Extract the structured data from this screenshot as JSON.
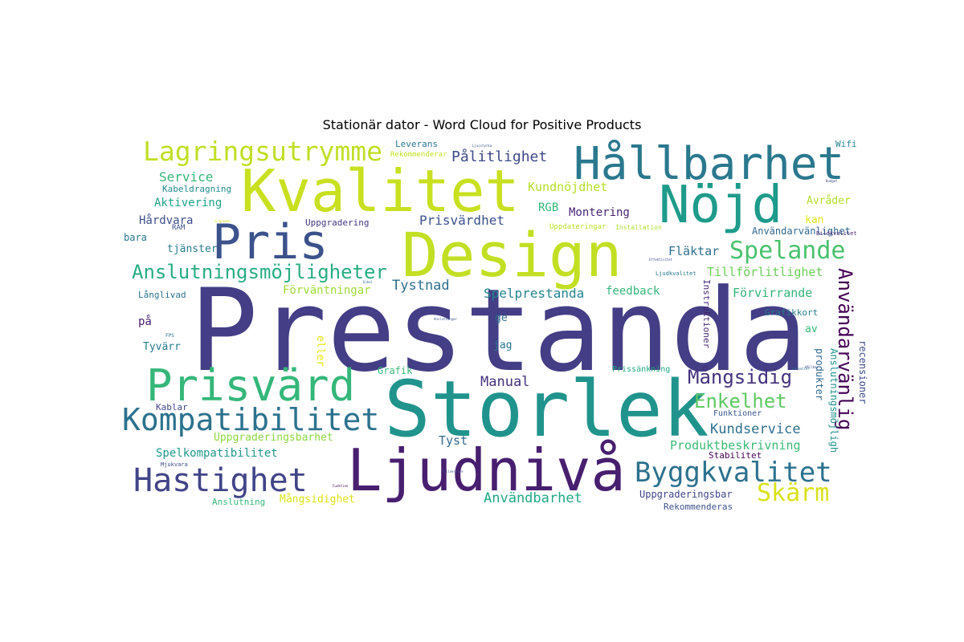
{
  "title": "Stationär dator - Word Cloud for Positive Products",
  "words": [
    {
      "text": "Prestanda",
      "color": "#433e85"
    },
    {
      "text": "Storlek",
      "color": "#20938c"
    },
    {
      "text": "Design",
      "color": "#c2df23"
    },
    {
      "text": "Kvalitet",
      "color": "#c8e020"
    },
    {
      "text": "Nöjd",
      "color": "#1e9b8a"
    },
    {
      "text": "Ljudnivå",
      "color": "#481f70"
    },
    {
      "text": "Hållbarhet",
      "color": "#2a788e"
    },
    {
      "text": "Prisvärd",
      "color": "#35b779"
    },
    {
      "text": "Pris",
      "color": "#3b528b"
    },
    {
      "text": "Kompatibilitet",
      "color": "#2c728e"
    },
    {
      "text": "Lagringsutrymme",
      "color": "#c0df25"
    },
    {
      "text": "Hastighet",
      "color": "#414487"
    },
    {
      "text": "Byggkvalitet",
      "color": "#2c718e"
    },
    {
      "text": "Spelande",
      "color": "#4ac16d"
    },
    {
      "text": "Anslutningsmöjligheter",
      "color": "#27ad81"
    },
    {
      "text": "Skärm",
      "color": "#d8e219"
    },
    {
      "text": "Användarvänlig",
      "color": "#440154"
    },
    {
      "text": "Mångsidig",
      "color": "#46337e"
    },
    {
      "text": "Enkelhet",
      "color": "#5ec962"
    },
    {
      "text": "Pålitlighet",
      "color": "#3e4a89"
    },
    {
      "text": "Kundnöjdhet",
      "color": "#b5de2b"
    },
    {
      "text": "Tystnad",
      "color": "#2e6e8e"
    },
    {
      "text": "Spelprestanda",
      "color": "#25848e"
    },
    {
      "text": "Prisvärdhet",
      "color": "#3b518b"
    },
    {
      "text": "Manual",
      "color": "#46327e"
    },
    {
      "text": "Kundservice",
      "color": "#2d708e"
    },
    {
      "text": "Användbarhet",
      "color": "#22a884"
    },
    {
      "text": "Hårdvara",
      "color": "#3d4e8a"
    },
    {
      "text": "Service",
      "color": "#34b679"
    },
    {
      "text": "Aktivering",
      "color": "#20a386"
    },
    {
      "text": "Förväntningar",
      "color": "#9fda3a"
    },
    {
      "text": "Spelkompatibilitet",
      "color": "#1f988b"
    },
    {
      "text": "Uppgraderingsbarhet",
      "color": "#8ed645"
    },
    {
      "text": "Produktbeskrivning",
      "color": "#3aba76"
    },
    {
      "text": "Tillförlitlighet",
      "color": "#6ccd5a"
    },
    {
      "text": "Förvirrande",
      "color": "#32b67a"
    },
    {
      "text": "Fläktar",
      "color": "#2d708e"
    },
    {
      "text": "Tyst",
      "color": "#31688e"
    },
    {
      "text": "Montering",
      "color": "#482475"
    },
    {
      "text": "RGB",
      "color": "#35b779"
    },
    {
      "text": "Användarvänlighet",
      "color": "#31678e"
    },
    {
      "text": "Mångsidighet",
      "color": "#dde318"
    },
    {
      "text": "feedback",
      "color": "#35b779"
    },
    {
      "text": "tjänster",
      "color": "#287d8e"
    },
    {
      "text": "Kabeldragning",
      "color": "#238a8d"
    },
    {
      "text": "Tyvärr",
      "color": "#287c8e"
    },
    {
      "text": "Grafik",
      "color": "#37b878"
    },
    {
      "text": "Uppgradering",
      "color": "#453882"
    },
    {
      "text": "Kablar",
      "color": "#404688"
    },
    {
      "text": "Anslutning",
      "color": "#35b779"
    },
    {
      "text": "Uppgraderingsbar",
      "color": "#3f4788"
    },
    {
      "text": "Rekommenderas",
      "color": "#3b528b"
    },
    {
      "text": "Stabilitet",
      "color": "#440154"
    },
    {
      "text": "Funktioner",
      "color": "#38588c"
    },
    {
      "text": "produkter",
      "color": "#31688e"
    },
    {
      "text": "recensioner",
      "color": "#3e4a89"
    },
    {
      "text": "Anslutningsmöjligh",
      "color": "#21918c"
    },
    {
      "text": "Instruktioner",
      "color": "#482576"
    },
    {
      "text": "eller",
      "color": "#e5e419"
    },
    {
      "text": "Avråder",
      "color": "#b2dd2d"
    },
    {
      "text": "kan",
      "color": "#e2e418"
    },
    {
      "text": "Grafikkort",
      "color": "#287c8e"
    },
    {
      "text": "av",
      "color": "#3aba76"
    },
    {
      "text": "jag",
      "color": "#2a788e"
    },
    {
      "text": "ge",
      "color": "#2e6d8e"
    },
    {
      "text": "på",
      "color": "#481d6f"
    },
    {
      "text": "bara",
      "color": "#2a768e"
    },
    {
      "text": "Långlivad",
      "color": "#2c718e"
    },
    {
      "text": "RAM",
      "color": "#3b528b"
    },
    {
      "text": "Wifi",
      "color": "#25858e"
    },
    {
      "text": "Leverans",
      "color": "#2b758e"
    },
    {
      "text": "Rekommenderar",
      "color": "#c2df23"
    },
    {
      "text": "Uppdateringar",
      "color": "#b8de29"
    },
    {
      "text": "Installation",
      "color": "#addc30"
    },
    {
      "text": "Prissänkning",
      "color": "#22a884"
    },
    {
      "text": "Ljudkvalitet",
      "color": "#29798e"
    },
    {
      "text": "Bildkvalitet",
      "color": "#482878"
    },
    {
      "text": "Mjukvara",
      "color": "#3f4889"
    },
    {
      "text": "FPS",
      "color": "#2c718e"
    },
    {
      "text": "Funktion",
      "color": "#440154"
    },
    {
      "text": "Tillverkare",
      "color": "#3e4a89"
    },
    {
      "text": "Anslutningar",
      "color": "#3b528b"
    },
    {
      "text": "Enkel",
      "color": "#2c718e"
    },
    {
      "text": "Budget",
      "color": "#3e4a89"
    },
    {
      "text": "Ergonomi",
      "color": "#d8e219"
    },
    {
      "text": "Ljusstyrka",
      "color": "#3b528b"
    },
    {
      "text": "Effektivitet",
      "color": "#3e4a89"
    },
    {
      "text": "Garantier",
      "color": "#2c718e"
    },
    {
      "text": "Hållbar",
      "color": "#3e4a89"
    }
  ]
}
